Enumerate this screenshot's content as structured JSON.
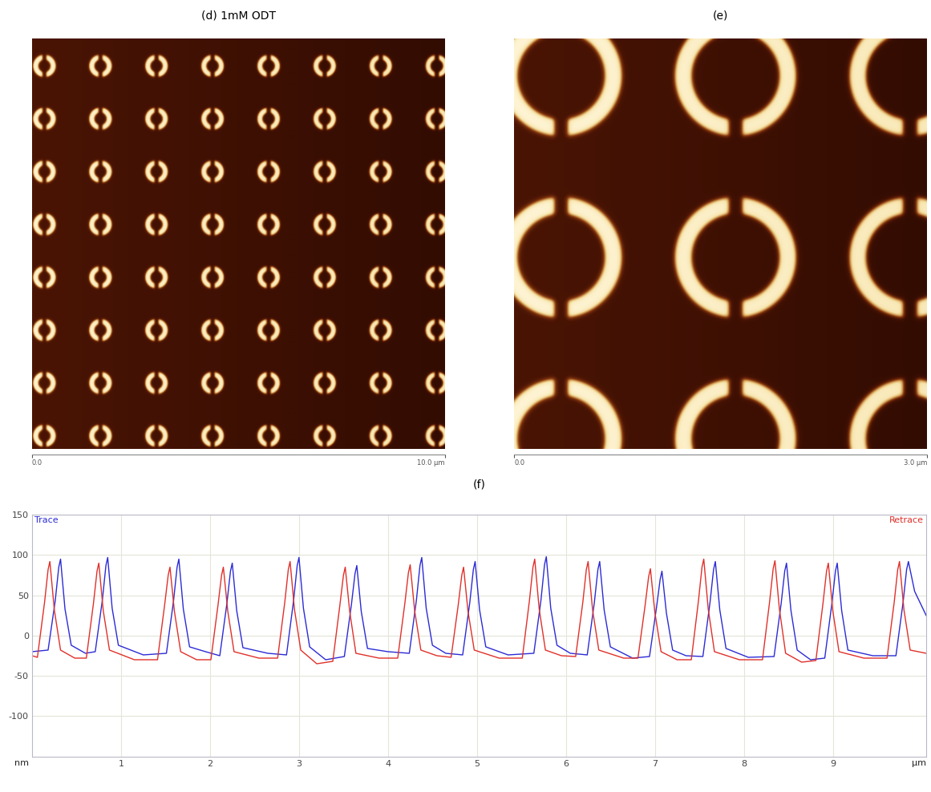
{
  "chart_data": [
    {
      "type": "image",
      "title": "(d) 1mM ODT",
      "xlim": [
        0,
        10
      ],
      "xticks": [
        {
          "value": 0,
          "label": "0.0"
        },
        {
          "value": 10,
          "label": "10.0 µm"
        }
      ],
      "tick_labels": "x"
    },
    {
      "type": "image",
      "title": "(e)",
      "xlim": [
        0,
        3
      ],
      "xticks": [
        {
          "value": 0,
          "label": "0.0"
        },
        {
          "value": 3,
          "label": "3.0 µm"
        }
      ],
      "tick_labels": "x"
    },
    {
      "type": "line",
      "title": "(f)",
      "x_label": "µm",
      "y_label": "nm",
      "xlim": [
        0,
        10.05
      ],
      "xticks": [
        1,
        2,
        3,
        4,
        5,
        6,
        7,
        8,
        9
      ],
      "ylim": [
        -150,
        150
      ],
      "yticks": [
        -100,
        -50,
        0,
        50,
        100,
        150
      ],
      "grid": true,
      "series": [
        {
          "name": "Trace",
          "color": "#2b2bd6",
          "x": [
            0.0,
            0.18,
            0.26,
            0.3,
            0.32,
            0.37,
            0.44,
            0.6,
            0.71,
            0.79,
            0.83,
            0.85,
            0.9,
            0.97,
            1.25,
            1.51,
            1.59,
            1.63,
            1.65,
            1.7,
            1.77,
            1.95,
            2.11,
            2.19,
            2.23,
            2.25,
            2.3,
            2.37,
            2.65,
            2.86,
            2.94,
            2.98,
            3.0,
            3.05,
            3.12,
            3.3,
            3.51,
            3.59,
            3.63,
            3.65,
            3.7,
            3.77,
            4.0,
            4.24,
            4.32,
            4.36,
            4.38,
            4.43,
            4.5,
            4.65,
            4.84,
            4.92,
            4.96,
            4.98,
            5.03,
            5.1,
            5.35,
            5.64,
            5.72,
            5.76,
            5.78,
            5.83,
            5.9,
            6.05,
            6.24,
            6.32,
            6.36,
            6.38,
            6.43,
            6.5,
            6.75,
            6.94,
            7.02,
            7.06,
            7.08,
            7.13,
            7.2,
            7.35,
            7.54,
            7.62,
            7.66,
            7.68,
            7.73,
            7.8,
            8.05,
            8.34,
            8.42,
            8.46,
            8.48,
            8.53,
            8.6,
            8.75,
            8.91,
            8.99,
            9.03,
            9.05,
            9.1,
            9.17,
            9.45,
            9.71,
            9.79,
            9.83,
            9.85,
            9.92,
            10.05
          ],
          "values": [
            -20,
            -18,
            43,
            85,
            95,
            33,
            -12,
            -22,
            -20,
            44,
            87,
            97,
            34,
            -12,
            -24,
            -22,
            43,
            85,
            95,
            33,
            -14,
            -20,
            -25,
            40,
            80,
            90,
            31,
            -15,
            -22,
            -24,
            44,
            87,
            97,
            34,
            -14,
            -30,
            -26,
            39,
            77,
            87,
            30,
            -16,
            -20,
            -22,
            44,
            87,
            97,
            34,
            -12,
            -22,
            -24,
            41,
            82,
            92,
            32,
            -14,
            -24,
            -22,
            44,
            88,
            98,
            34,
            -12,
            -22,
            -24,
            41,
            82,
            92,
            32,
            -14,
            -28,
            -26,
            36,
            70,
            80,
            28,
            -18,
            -25,
            -26,
            41,
            82,
            92,
            32,
            -16,
            -27,
            -26,
            40,
            80,
            90,
            31,
            -18,
            -30,
            -28,
            40,
            80,
            90,
            31,
            -18,
            -25,
            -25,
            41,
            82,
            92,
            55,
            25
          ]
        },
        {
          "name": "Retrace",
          "color": "#e0302a",
          "x": [
            0.0,
            0.06,
            0.14,
            0.18,
            0.2,
            0.25,
            0.32,
            0.48,
            0.61,
            0.69,
            0.73,
            0.75,
            0.8,
            0.87,
            1.15,
            1.41,
            1.49,
            1.53,
            1.55,
            1.6,
            1.67,
            1.85,
            2.01,
            2.09,
            2.13,
            2.15,
            2.2,
            2.27,
            2.55,
            2.76,
            2.84,
            2.88,
            2.9,
            2.95,
            3.02,
            3.2,
            3.38,
            3.46,
            3.5,
            3.52,
            3.57,
            3.64,
            3.9,
            4.11,
            4.19,
            4.23,
            4.25,
            4.3,
            4.37,
            4.55,
            4.71,
            4.79,
            4.83,
            4.85,
            4.9,
            4.97,
            5.25,
            5.51,
            5.59,
            5.63,
            5.65,
            5.7,
            5.77,
            5.95,
            6.11,
            6.19,
            6.23,
            6.25,
            6.3,
            6.37,
            6.65,
            6.81,
            6.89,
            6.93,
            6.95,
            7.0,
            7.07,
            7.25,
            7.41,
            7.49,
            7.53,
            7.55,
            7.6,
            7.67,
            7.95,
            8.21,
            8.29,
            8.33,
            8.35,
            8.4,
            8.47,
            8.65,
            8.81,
            8.89,
            8.93,
            8.95,
            9.0,
            9.07,
            9.35,
            9.61,
            9.69,
            9.73,
            9.75,
            9.8,
            9.87,
            10.05
          ],
          "values": [
            -25,
            -27,
            41,
            82,
            92,
            32,
            -18,
            -28,
            -28,
            40,
            80,
            90,
            31,
            -18,
            -30,
            -30,
            38,
            75,
            85,
            30,
            -20,
            -30,
            -30,
            38,
            75,
            85,
            30,
            -20,
            -28,
            -28,
            41,
            82,
            92,
            32,
            -18,
            -35,
            -32,
            38,
            75,
            85,
            30,
            -22,
            -28,
            -28,
            40,
            78,
            88,
            31,
            -18,
            -25,
            -27,
            38,
            75,
            85,
            30,
            -18,
            -28,
            -28,
            43,
            85,
            95,
            33,
            -18,
            -25,
            -26,
            41,
            82,
            92,
            32,
            -18,
            -28,
            -28,
            37,
            73,
            83,
            29,
            -20,
            -30,
            -30,
            43,
            85,
            95,
            33,
            -20,
            -30,
            -30,
            42,
            83,
            93,
            33,
            -22,
            -33,
            -31,
            40,
            80,
            90,
            31,
            -20,
            -28,
            -28,
            41,
            82,
            92,
            32,
            -18,
            -22
          ]
        }
      ]
    }
  ]
}
